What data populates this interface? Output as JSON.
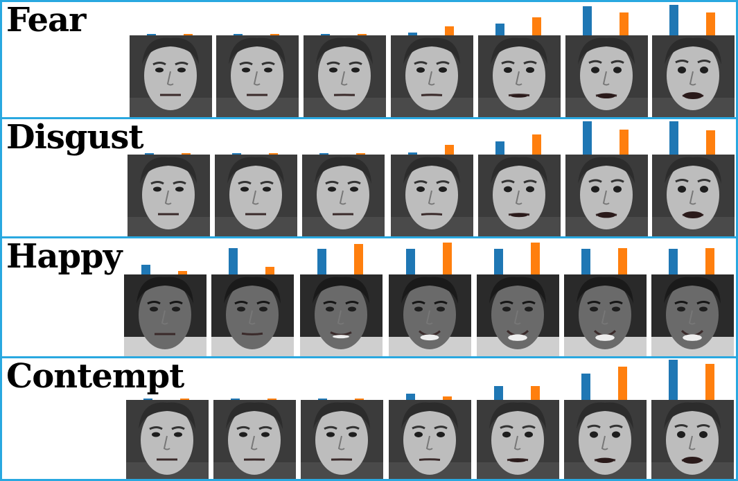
{
  "colors": {
    "frame": "#29a8e0",
    "bar_a": "#1f77b4",
    "bar_b": "#ff7f0e",
    "label": "#000000"
  },
  "rows": [
    {
      "name": "Fear",
      "intensity_a": [
        0.0,
        0.02,
        0.02,
        0.08,
        0.38,
        0.95,
        1.0
      ],
      "intensity_b": [
        0.0,
        0.03,
        0.05,
        0.3,
        0.58,
        0.75,
        0.75
      ],
      "face_tone": "light",
      "expression": [
        0,
        0,
        0.1,
        0.25,
        0.45,
        0.75,
        1.0
      ]
    },
    {
      "name": "Disgust",
      "intensity_a": [
        0.0,
        0.02,
        0.02,
        0.06,
        0.4,
        1.0,
        1.0
      ],
      "intensity_b": [
        0.0,
        0.03,
        0.05,
        0.3,
        0.6,
        0.75,
        0.72
      ],
      "face_tone": "light",
      "expression": [
        0,
        0,
        0.05,
        0.3,
        0.55,
        0.85,
        1.0
      ]
    },
    {
      "name": "Happy",
      "intensity_a": [
        0.3,
        0.83,
        0.8,
        0.8,
        0.8,
        0.8,
        0.8
      ],
      "intensity_b": [
        0.1,
        0.25,
        0.95,
        1.0,
        1.0,
        0.83,
        0.83
      ],
      "face_tone": "dark",
      "expression": [
        0,
        0.15,
        0.5,
        0.85,
        0.95,
        0.95,
        0.95
      ]
    },
    {
      "name": "Contempt",
      "intensity_a": [
        0.0,
        0.02,
        0.02,
        0.15,
        0.35,
        0.65,
        1.0
      ],
      "intensity_b": [
        0.0,
        0.02,
        0.03,
        0.08,
        0.35,
        0.82,
        0.9
      ],
      "face_tone": "light",
      "expression": [
        0,
        0.05,
        0.1,
        0.3,
        0.5,
        0.75,
        1.0
      ]
    }
  ]
}
